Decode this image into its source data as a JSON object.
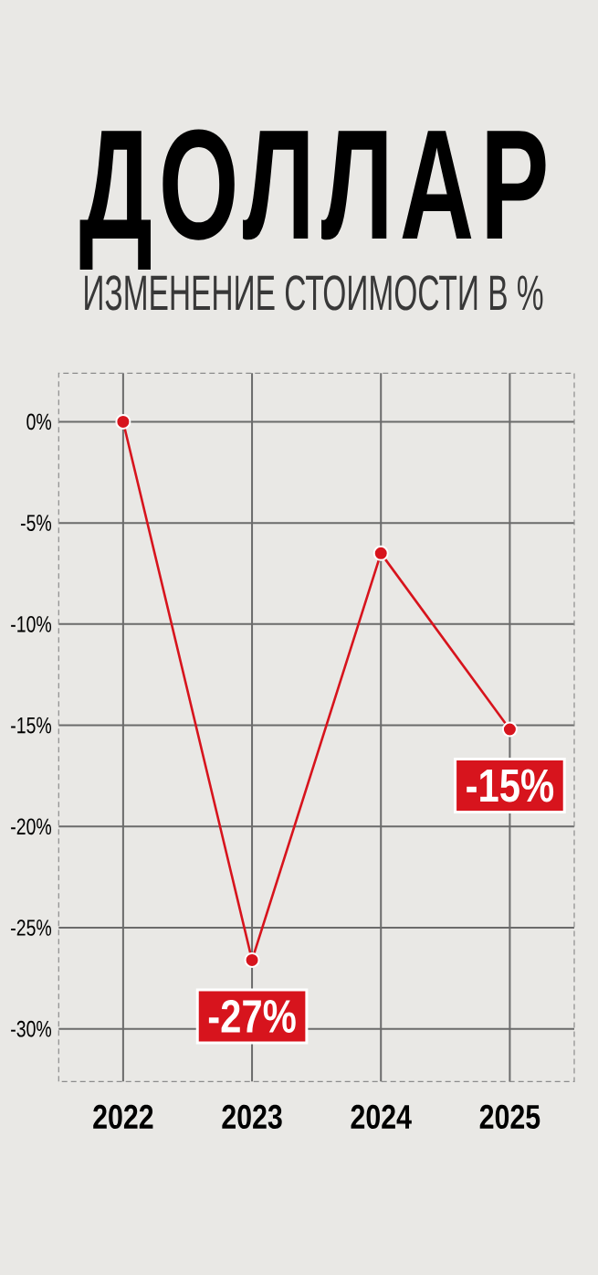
{
  "chart_data": {
    "type": "line",
    "title": "ДОЛЛАР",
    "subtitle": "ИЗМЕНЕНИЕ СТОИМОСТИ В %",
    "categories": [
      "2022",
      "2023",
      "2024",
      "2025"
    ],
    "values": [
      0,
      -26.6,
      -6.5,
      -15.2
    ],
    "color": "#d7141d",
    "value_labels": [
      null,
      "-27%",
      null,
      "-15%"
    ],
    "ylim": [
      -32.6,
      2.4
    ],
    "yticks": [
      {
        "value": 0,
        "label": "0%"
      },
      {
        "value": -5,
        "label": "-5%"
      },
      {
        "value": -10,
        "label": "-10%"
      },
      {
        "value": -15,
        "label": "-15%"
      },
      {
        "value": -20,
        "label": "-20%"
      },
      {
        "value": -25,
        "label": "-25%"
      },
      {
        "value": -30,
        "label": "-30%"
      }
    ],
    "grid": true,
    "marker": "circle",
    "line_style": "solid"
  }
}
